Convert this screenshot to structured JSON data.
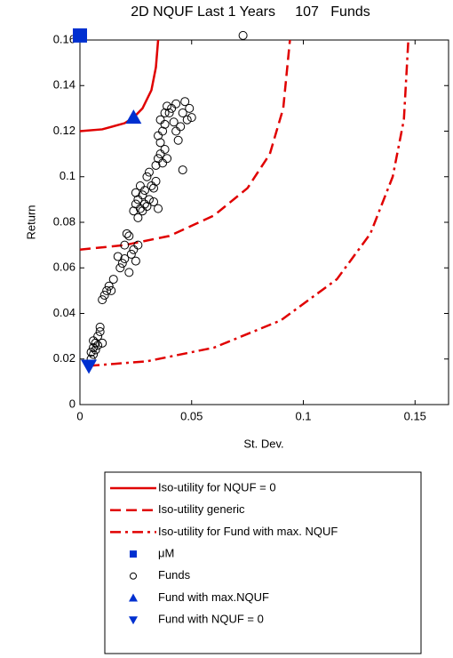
{
  "chart_data": {
    "type": "scatter",
    "title": "2D NQUF Last 1 Years     107   Funds",
    "x_label": "St. Dev.",
    "y_label": "Return",
    "xlim": [
      0,
      0.165
    ],
    "ylim": [
      0,
      0.16
    ],
    "xticks": [
      0,
      0.05,
      0.1,
      0.15
    ],
    "yticks": [
      0,
      0.02,
      0.04,
      0.06,
      0.08,
      0.1,
      0.12,
      0.14,
      0.16
    ],
    "series": [
      {
        "name": "Iso-utility for NQUF = 0",
        "color": "#e00000",
        "line": "solid",
        "x": [
          0,
          0.01,
          0.02,
          0.024,
          0.028,
          0.032,
          0.034,
          0.035
        ],
        "y": [
          0.12,
          0.1208,
          0.1235,
          0.126,
          0.13,
          0.138,
          0.148,
          0.16
        ]
      },
      {
        "name": "Iso-utility generic",
        "color": "#e00000",
        "line": "dashed",
        "x": [
          0,
          0.02,
          0.04,
          0.06,
          0.075,
          0.085,
          0.091,
          0.094
        ],
        "y": [
          0.068,
          0.07,
          0.074,
          0.083,
          0.095,
          0.11,
          0.13,
          0.16
        ]
      },
      {
        "name": "Iso-utility for Fund with max. NQUF",
        "color": "#e00000",
        "line": "dashdot",
        "x": [
          0.004,
          0.03,
          0.06,
          0.09,
          0.115,
          0.13,
          0.14,
          0.145,
          0.147
        ],
        "y": [
          0.017,
          0.019,
          0.025,
          0.037,
          0.055,
          0.075,
          0.1,
          0.125,
          0.16
        ]
      },
      {
        "name": "μM",
        "color": "#0030d0",
        "marker": "square",
        "x": [
          0
        ],
        "y": [
          0.162
        ]
      },
      {
        "name": "Funds",
        "color": "#000000",
        "marker": "circle",
        "x": [
          0.005,
          0.006,
          0.006,
          0.007,
          0.008,
          0.009,
          0.007,
          0.005,
          0.008,
          0.006,
          0.01,
          0.009,
          0.01,
          0.011,
          0.012,
          0.013,
          0.014,
          0.015,
          0.017,
          0.018,
          0.019,
          0.02,
          0.02,
          0.021,
          0.022,
          0.023,
          0.024,
          0.025,
          0.022,
          0.026,
          0.024,
          0.025,
          0.026,
          0.027,
          0.028,
          0.029,
          0.03,
          0.031,
          0.032,
          0.033,
          0.025,
          0.027,
          0.029,
          0.03,
          0.031,
          0.034,
          0.028,
          0.026,
          0.035,
          0.033,
          0.034,
          0.035,
          0.036,
          0.037,
          0.038,
          0.036,
          0.037,
          0.038,
          0.035,
          0.039,
          0.036,
          0.04,
          0.041,
          0.042,
          0.043,
          0.044,
          0.045,
          0.046,
          0.047,
          0.048,
          0.049,
          0.05,
          0.046,
          0.038,
          0.039,
          0.043,
          0.073
        ],
        "y": [
          0.02,
          0.022,
          0.025,
          0.027,
          0.03,
          0.032,
          0.024,
          0.023,
          0.026,
          0.028,
          0.027,
          0.034,
          0.046,
          0.048,
          0.05,
          0.052,
          0.05,
          0.055,
          0.065,
          0.06,
          0.062,
          0.064,
          0.07,
          0.075,
          0.074,
          0.066,
          0.068,
          0.063,
          0.058,
          0.07,
          0.085,
          0.088,
          0.09,
          0.086,
          0.092,
          0.094,
          0.087,
          0.09,
          0.096,
          0.095,
          0.093,
          0.096,
          0.088,
          0.1,
          0.102,
          0.098,
          0.085,
          0.082,
          0.086,
          0.089,
          0.105,
          0.108,
          0.11,
          0.106,
          0.112,
          0.115,
          0.12,
          0.123,
          0.118,
          0.108,
          0.125,
          0.128,
          0.13,
          0.124,
          0.12,
          0.116,
          0.122,
          0.128,
          0.133,
          0.125,
          0.13,
          0.126,
          0.103,
          0.128,
          0.131,
          0.132,
          0.162
        ]
      },
      {
        "name": "Fund with max.NQUF",
        "color": "#0030d0",
        "marker": "triangle-up",
        "x": [
          0.024
        ],
        "y": [
          0.126
        ]
      },
      {
        "name": "Fund with NQUF = 0",
        "color": "#0030d0",
        "marker": "triangle-down",
        "x": [
          0.004
        ],
        "y": [
          0.017
        ]
      }
    ]
  }
}
